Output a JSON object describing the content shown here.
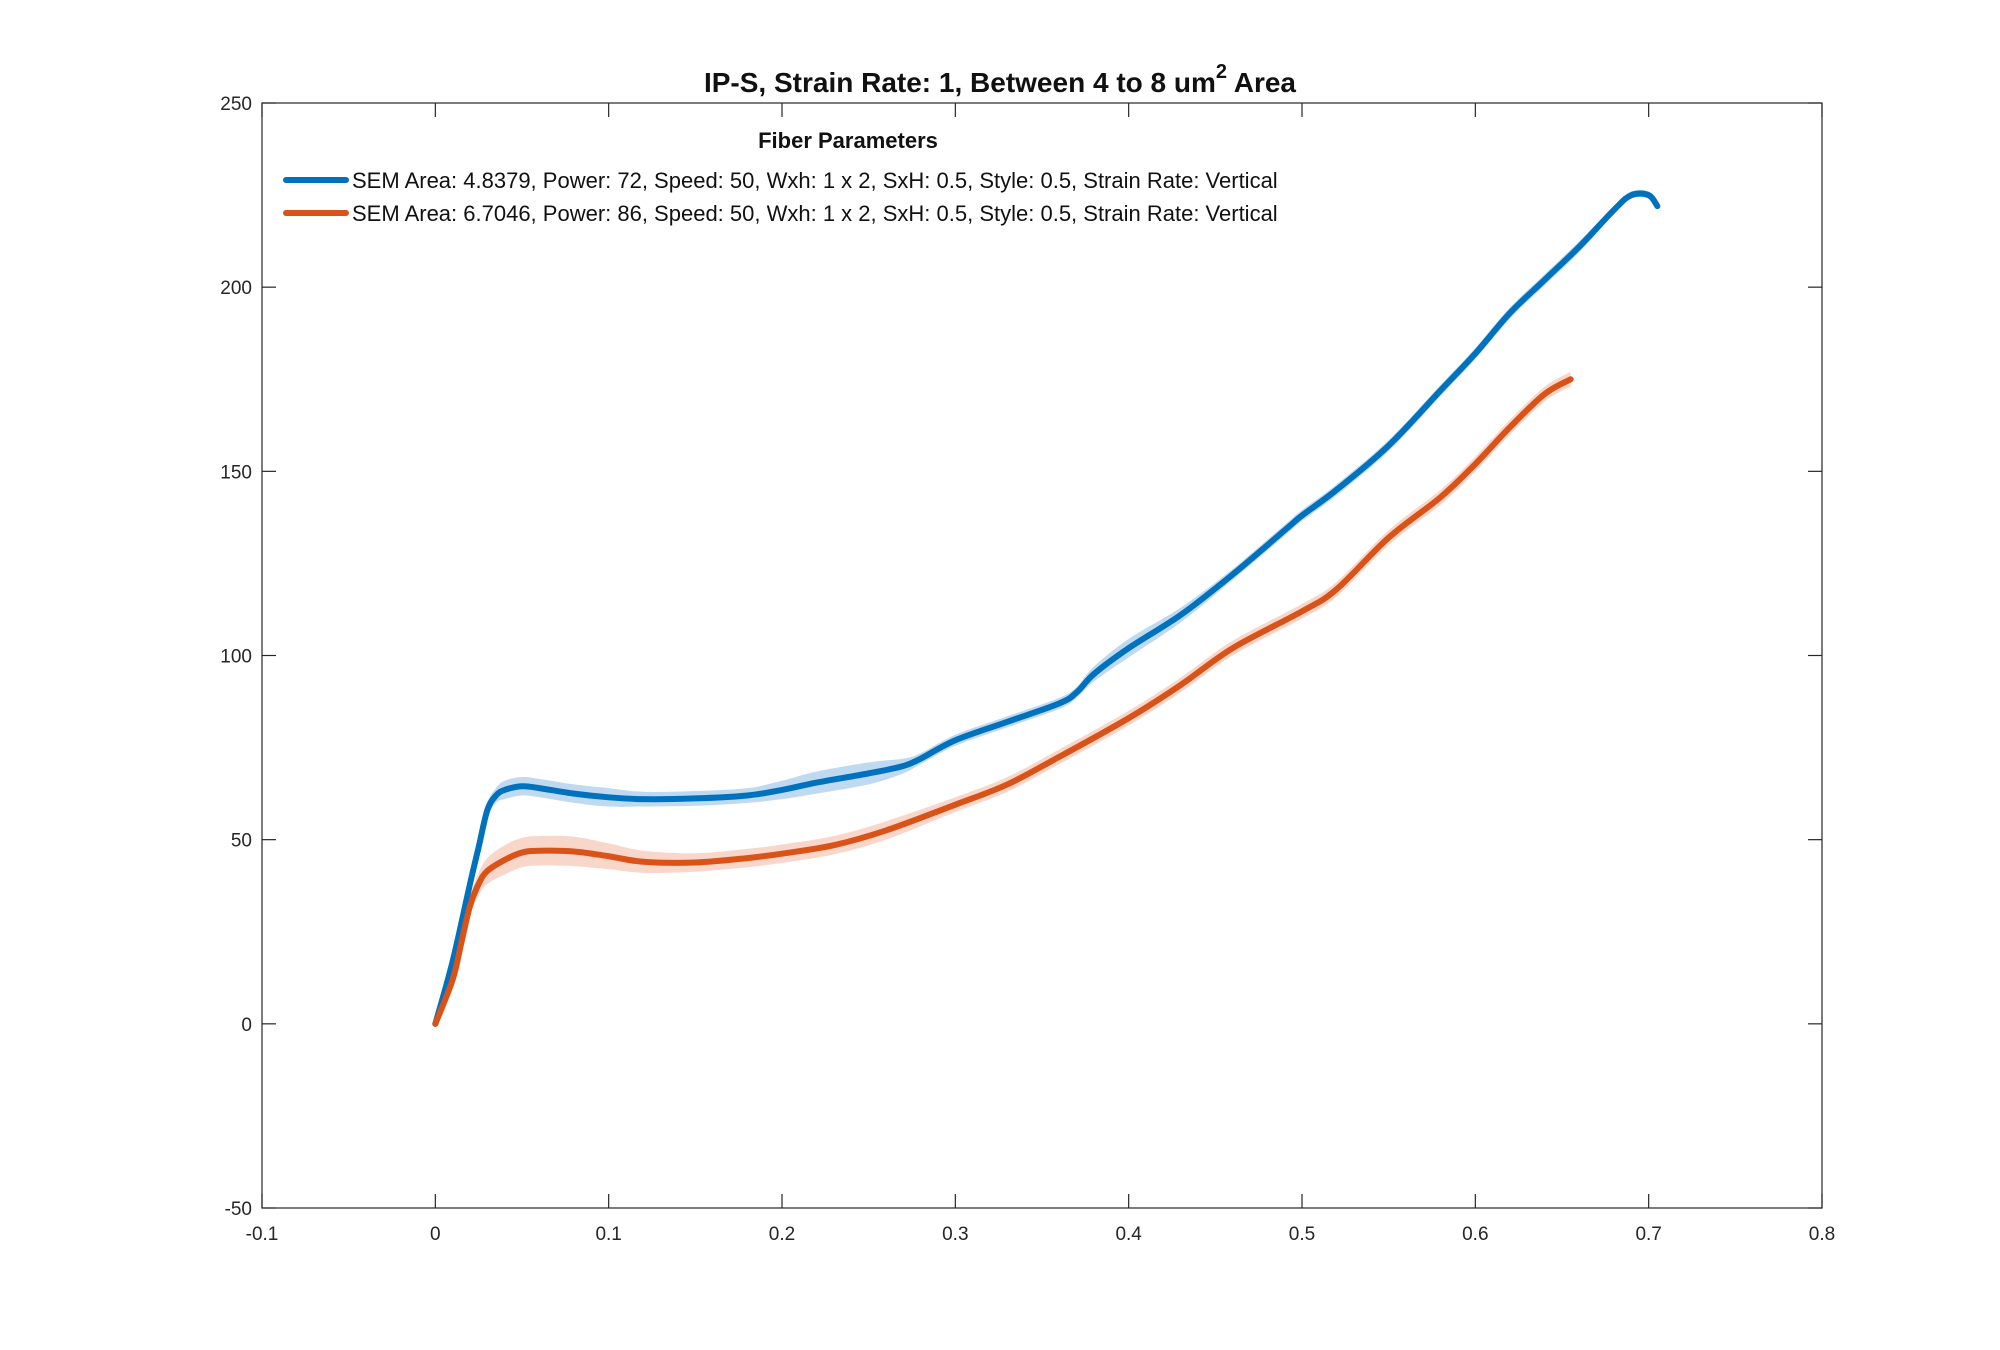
{
  "chart_data": {
    "type": "line",
    "title": "IP-S, Strain Rate: 1, Between 4 to 8 um",
    "title_superscript": "2",
    "title_suffix": " Area",
    "xlabel": "",
    "ylabel": "",
    "xlim": [
      -0.1,
      0.8
    ],
    "ylim": [
      -50,
      250
    ],
    "xticks": [
      "-0.1",
      "0",
      "0.1",
      "0.2",
      "0.3",
      "0.4",
      "0.5",
      "0.6",
      "0.7",
      "0.8"
    ],
    "yticks": [
      "-50",
      "0",
      "50",
      "100",
      "150",
      "200",
      "250"
    ],
    "grid": false,
    "legend": {
      "title": "Fiber Parameters",
      "placement": "top-left"
    },
    "series": [
      {
        "name": "SEM Area: 4.8379, Power: 72, Speed: 50, Wxh: 1 x 2, SxH: 0.5, Style: 0.5, Strain Rate: Vertical",
        "color": "#0072BD",
        "band_color": "#A9CDEB",
        "x": [
          0,
          0.01,
          0.02,
          0.025,
          0.03,
          0.035,
          0.04,
          0.05,
          0.06,
          0.08,
          0.1,
          0.12,
          0.15,
          0.18,
          0.2,
          0.22,
          0.25,
          0.27,
          0.28,
          0.3,
          0.33,
          0.36,
          0.37,
          0.38,
          0.4,
          0.43,
          0.46,
          0.49,
          0.5,
          0.52,
          0.55,
          0.58,
          0.6,
          0.62,
          0.64,
          0.66,
          0.68,
          0.69,
          0.7,
          0.705
        ],
        "y": [
          0,
          17,
          38,
          48,
          58,
          62,
          63.5,
          64.5,
          64,
          62.5,
          61.5,
          61,
          61.2,
          62,
          63.5,
          65.5,
          68,
          70,
          72,
          77,
          82,
          87,
          90,
          95,
          102,
          111,
          122,
          134,
          138,
          145,
          157,
          172,
          182,
          193,
          202,
          211,
          221,
          225,
          225,
          222
        ],
        "band_halfwidth": [
          0,
          1,
          1.5,
          2,
          2,
          2,
          2.5,
          2.5,
          2.5,
          2.5,
          2.5,
          2,
          2,
          2,
          2.5,
          3,
          3,
          2,
          1.5,
          1.5,
          1.5,
          1.5,
          1.5,
          2,
          2.5,
          2,
          1.5,
          1.5,
          1.5,
          1.5,
          1.5,
          1.5,
          1.5,
          1.5,
          1.5,
          1.5,
          1,
          1,
          1,
          1
        ]
      },
      {
        "name": "SEM Area: 6.7046, Power: 86, Speed: 50, Wxh: 1 x 2, SxH: 0.5, Style: 0.5, Strain Rate: Vertical",
        "color": "#D95319",
        "band_color": "#F5C9B8",
        "x": [
          0,
          0.01,
          0.015,
          0.02,
          0.025,
          0.03,
          0.04,
          0.05,
          0.06,
          0.08,
          0.1,
          0.12,
          0.15,
          0.18,
          0.2,
          0.23,
          0.26,
          0.3,
          0.33,
          0.36,
          0.4,
          0.43,
          0.46,
          0.5,
          0.52,
          0.55,
          0.58,
          0.6,
          0.62,
          0.64,
          0.655
        ],
        "y": [
          0,
          12,
          22,
          32,
          38,
          41.5,
          44.5,
          46.5,
          47,
          46.8,
          45.5,
          44,
          43.8,
          45,
          46.2,
          48.5,
          52.5,
          59.5,
          65,
          72.5,
          83,
          92,
          102,
          112,
          118,
          132,
          143,
          152,
          162,
          171,
          175
        ],
        "band_halfwidth": [
          0,
          1,
          2,
          2.5,
          3,
          3.5,
          4,
          4,
          4,
          4,
          3.5,
          3,
          2.5,
          2.5,
          2.5,
          2.5,
          2.5,
          2,
          2,
          2,
          2,
          2,
          2,
          2,
          2,
          2,
          2,
          2,
          2,
          2,
          2
        ]
      }
    ]
  }
}
